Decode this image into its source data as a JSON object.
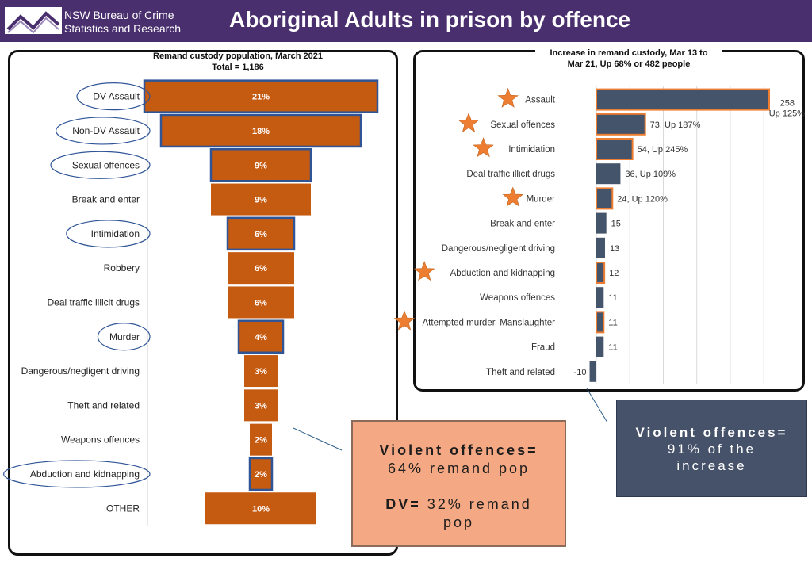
{
  "header": {
    "org_line1": "NSW Bureau of Crime",
    "org_line2": "Statistics and Research",
    "title": "Aboriginal Adults in prison by offence"
  },
  "colors": {
    "header_bg": "#4a2f6e",
    "left_bar": "#c55a11",
    "right_bar": "#44546a",
    "highlight": "#2f5597",
    "star": "#ed7d31"
  },
  "chart_data": [
    {
      "type": "bar",
      "orientation": "horizontal-funnel",
      "title": "Remand custody population, March 2021",
      "subtitle": "Total = 1,186",
      "categories": [
        "DV Assault",
        "Non-DV Assault",
        "Sexual offences",
        "Break and enter",
        "Intimidation",
        "Robbery",
        "Deal traffic illicit drugs",
        "Murder",
        "Dangerous/negligent driving",
        "Theft and related",
        "Weapons offences",
        "Abduction and kidnapping",
        "OTHER"
      ],
      "values": [
        21,
        18,
        9,
        9,
        6,
        6,
        6,
        4,
        3,
        3,
        2,
        2,
        10
      ],
      "labels": [
        "21%",
        "18%",
        "9%",
        "9%",
        "6%",
        "6%",
        "6%",
        "4%",
        "3%",
        "3%",
        "2%",
        "2%",
        "10%"
      ],
      "highlighted": [
        "DV Assault",
        "Non-DV Assault",
        "Sexual offences",
        "Intimidation",
        "Murder",
        "Abduction and kidnapping"
      ]
    },
    {
      "type": "bar",
      "orientation": "horizontal",
      "title": "Increase in remand custody, Mar 13 to",
      "subtitle": "Mar 21, Up 68% or 482 people",
      "categories": [
        "Assault",
        "Sexual offences",
        "Intimidation",
        "Deal traffic illicit drugs",
        "Murder",
        "Break and enter",
        "Dangerous/negligent driving",
        "Abduction and kidnapping",
        "Weapons offences",
        "Attempted murder, Manslaughter",
        "Fraud",
        "Theft and related"
      ],
      "values": [
        258,
        73,
        54,
        36,
        24,
        15,
        13,
        12,
        11,
        11,
        11,
        -10
      ],
      "labels": [
        "258",
        "73, Up 187%",
        "54, Up 245%",
        "36, Up 109%",
        "24, Up 120%",
        "15",
        "13",
        "12",
        "11",
        "11",
        "11",
        "-10"
      ],
      "label_extra": {
        "Assault": "Up 125%"
      },
      "starred": [
        "Assault",
        "Sexual offences",
        "Intimidation",
        "Murder",
        "Abduction and kidnapping",
        "Attempted murder, Manslaughter"
      ],
      "xlim": [
        -10,
        280
      ],
      "grid": true
    }
  ],
  "callouts": {
    "left": {
      "line1": "Violent offences=",
      "line2": "64% remand pop",
      "line3_bold": "DV=",
      "line3_rest": " 32% remand",
      "line4": "pop"
    },
    "right": {
      "line1": "Violent offences=",
      "line2": "91% of the",
      "line3": "increase"
    }
  }
}
